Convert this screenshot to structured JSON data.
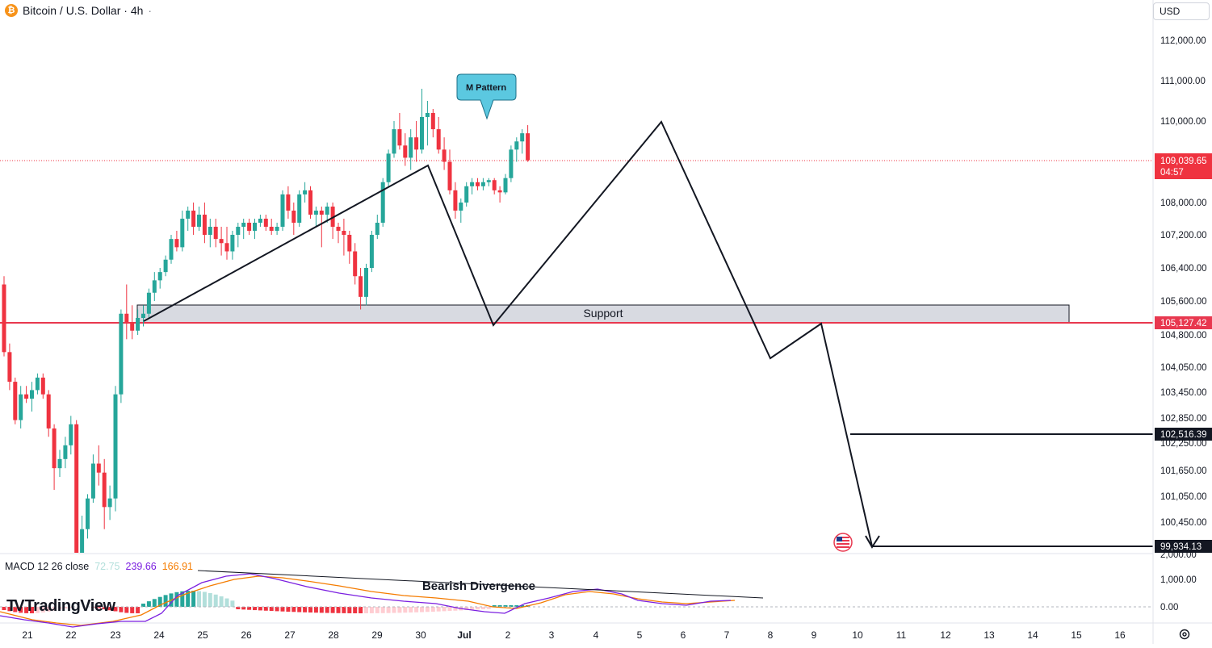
{
  "header": {
    "symbol_icon": "bitcoin-icon",
    "symbol_icon_glyph": "₿",
    "title": "Bitcoin / U.S. Dollar · 4h",
    "dots": "·"
  },
  "currency": {
    "label": "USD"
  },
  "price_axis": {
    "ticks": [
      "112,000.00",
      "111,000.00",
      "110,000.00",
      "108,000.00",
      "107,200.00",
      "106,400.00",
      "105,600.00",
      "104,800.00",
      "104,050.00",
      "103,450.00",
      "102,850.00",
      "102,250.00",
      "101,650.00",
      "101,050.00",
      "100,450.00"
    ],
    "current_price": "109,039.65",
    "countdown": "04:57",
    "support_price": "105,127.42",
    "target1_price": "102,516.39",
    "target2_price": "99,934.13",
    "clipped_tick": "2,000.00"
  },
  "time_axis": {
    "labels": [
      "21",
      "22",
      "23",
      "24",
      "25",
      "26",
      "27",
      "28",
      "29",
      "30",
      "Jul",
      "2",
      "3",
      "4",
      "5",
      "6",
      "7",
      "8",
      "9",
      "10",
      "11",
      "12",
      "13",
      "14",
      "15",
      "16"
    ]
  },
  "annotations": {
    "callout": "M Pattern",
    "support_label": "Support",
    "divergence_label": "Bearish Divergence"
  },
  "macd": {
    "name": "MACD 12 26 close",
    "histogram_value": "72.75",
    "macd_value": "239.66",
    "signal_value": "166.91",
    "axis_ticks": [
      "1,000.00",
      "0.00"
    ]
  },
  "colors": {
    "up": "#26a69a",
    "down": "#ef3340",
    "support_line": "#e8384f",
    "macd_line": "#7b1fe0",
    "signal_line": "#f57c00",
    "hist_pos_light": "#b2dfdb",
    "hist_neg_light": "#ffcdd2"
  },
  "brand": {
    "logo": "TradingView",
    "logo_mark": "TV"
  },
  "settings_icon": "gear-icon",
  "flag_icon": "us-flag-icon",
  "chart_data": {
    "type": "candlestick",
    "symbol": "Bitcoin / U.S. Dollar",
    "interval": "4h",
    "x": [
      "21",
      "22",
      "23",
      "24",
      "25",
      "26",
      "27",
      "28",
      "29",
      "30",
      "Jul",
      "2",
      "3",
      "4",
      "5",
      "6",
      "7"
    ],
    "y_range": [
      99900,
      112200
    ],
    "series": [
      {
        "name": "price",
        "values": [
          [
            106000,
            106200,
            104300,
            104400
          ],
          [
            104400,
            104600,
            103500,
            103700
          ],
          [
            103700,
            103800,
            102700,
            102800
          ],
          [
            102800,
            103600,
            102600,
            103400
          ],
          [
            103400,
            103600,
            103200,
            103300
          ],
          [
            103300,
            103700,
            103000,
            103500
          ],
          [
            103500,
            103900,
            103400,
            103800
          ],
          [
            103800,
            103900,
            103300,
            103400
          ],
          [
            103400,
            103500,
            102400,
            102600
          ],
          [
            102600,
            102700,
            101200,
            101700
          ],
          [
            101700,
            102100,
            101500,
            101900
          ],
          [
            101900,
            102400,
            101700,
            102200
          ],
          [
            102200,
            102900,
            102000,
            102700
          ],
          [
            102700,
            102800,
            98800,
            99300
          ],
          [
            99300,
            100600,
            99100,
            100300
          ],
          [
            100300,
            101100,
            100100,
            101000
          ],
          [
            101000,
            102000,
            100900,
            101800
          ],
          [
            101800,
            102200,
            101300,
            101600
          ],
          [
            101600,
            101900,
            100300,
            100800
          ],
          [
            100800,
            101300,
            100500,
            101000
          ],
          [
            101000,
            103600,
            100700,
            103400
          ],
          [
            103400,
            105400,
            103200,
            105300
          ],
          [
            105300,
            106000,
            104700,
            105100
          ],
          [
            105100,
            105500,
            104700,
            104900
          ],
          [
            104900,
            105400,
            104800,
            105200
          ],
          [
            105200,
            105500,
            105000,
            105300
          ],
          [
            105300,
            105900,
            105200,
            105800
          ],
          [
            105800,
            106300,
            105600,
            106100
          ],
          [
            106100,
            106400,
            105900,
            106300
          ],
          [
            106300,
            106700,
            106200,
            106600
          ],
          [
            106600,
            107200,
            106500,
            107100
          ],
          [
            107100,
            107300,
            106800,
            106900
          ],
          [
            106900,
            107800,
            106800,
            107600
          ],
          [
            107600,
            107900,
            107300,
            107800
          ],
          [
            107800,
            108000,
            107200,
            107400
          ],
          [
            107400,
            107900,
            107300,
            107700
          ],
          [
            107700,
            108000,
            107000,
            107200
          ],
          [
            107200,
            107600,
            106900,
            107400
          ],
          [
            107400,
            107600,
            106900,
            107100
          ],
          [
            107100,
            107400,
            106700,
            107000
          ],
          [
            107000,
            107400,
            106600,
            106800
          ],
          [
            106800,
            107300,
            106600,
            107200
          ],
          [
            107200,
            107500,
            106900,
            107400
          ],
          [
            107400,
            107600,
            107100,
            107500
          ],
          [
            107500,
            107600,
            107200,
            107300
          ],
          [
            107300,
            107600,
            107100,
            107500
          ],
          [
            107500,
            107700,
            107400,
            107600
          ],
          [
            107600,
            107700,
            107300,
            107400
          ],
          [
            107400,
            107600,
            107200,
            107300
          ],
          [
            107300,
            107500,
            107200,
            107400
          ],
          [
            107400,
            108300,
            107300,
            108200
          ],
          [
            108200,
            108400,
            107600,
            107800
          ],
          [
            107800,
            108000,
            107200,
            107500
          ],
          [
            107500,
            108300,
            107400,
            108200
          ],
          [
            108200,
            108500,
            108000,
            108300
          ],
          [
            108300,
            108400,
            107600,
            107700
          ],
          [
            107700,
            107900,
            107400,
            107800
          ],
          [
            107800,
            107900,
            106900,
            107700
          ],
          [
            107700,
            108000,
            107500,
            107900
          ],
          [
            107900,
            108000,
            107100,
            107400
          ],
          [
            107400,
            107500,
            107000,
            107300
          ],
          [
            107300,
            107600,
            106700,
            107200
          ],
          [
            107200,
            107300,
            106500,
            106800
          ],
          [
            106800,
            107000,
            106000,
            106200
          ],
          [
            106200,
            106400,
            105400,
            105700
          ],
          [
            105700,
            106500,
            105500,
            106400
          ],
          [
            106400,
            107300,
            106300,
            107200
          ],
          [
            107200,
            107700,
            107100,
            107500
          ],
          [
            107500,
            108600,
            107400,
            108500
          ],
          [
            108500,
            109300,
            108400,
            109200
          ],
          [
            109200,
            110000,
            109100,
            109800
          ],
          [
            109800,
            110200,
            109300,
            109400
          ],
          [
            109400,
            109700,
            108900,
            109100
          ],
          [
            109100,
            109800,
            108800,
            109600
          ],
          [
            109600,
            110000,
            109000,
            109300
          ],
          [
            109300,
            110800,
            109200,
            110100
          ],
          [
            110100,
            110500,
            109400,
            110200
          ],
          [
            110200,
            110300,
            109600,
            109800
          ],
          [
            109800,
            110100,
            109200,
            109300
          ],
          [
            109300,
            109600,
            108800,
            109000
          ],
          [
            109000,
            109300,
            108200,
            108300
          ],
          [
            108300,
            108500,
            107600,
            107800
          ],
          [
            107800,
            108100,
            107500,
            108000
          ],
          [
            108000,
            108500,
            107900,
            108400
          ],
          [
            108400,
            108600,
            108200,
            108500
          ],
          [
            108500,
            108600,
            108300,
            108400
          ],
          [
            108400,
            108600,
            108300,
            108500
          ],
          [
            108500,
            108600,
            108400,
            108550
          ],
          [
            108550,
            108600,
            108200,
            108300
          ],
          [
            108300,
            108400,
            108000,
            108250
          ],
          [
            108250,
            108700,
            108200,
            108600
          ],
          [
            108600,
            109400,
            108500,
            109300
          ],
          [
            109300,
            109600,
            109000,
            109500
          ],
          [
            109500,
            109800,
            109200,
            109700
          ],
          [
            109700,
            109900,
            109000,
            109040
          ]
        ]
      }
    ],
    "levels": {
      "support": 105127.42,
      "support_zone": [
        105127.42,
        105600
      ],
      "target_1": 102516.39,
      "target_2": 99934.13
    },
    "projection": [
      [
        "start",
        105127.42
      ],
      [
        "30",
        108650
      ],
      [
        "Jul",
        105127.42
      ],
      [
        "5",
        109800
      ],
      [
        "8",
        104400
      ],
      [
        "9",
        105127.42
      ],
      [
        "10",
        99934.13
      ]
    ],
    "macd": {
      "histogram": 72.75,
      "macd": 239.66,
      "signal": 166.91
    }
  }
}
